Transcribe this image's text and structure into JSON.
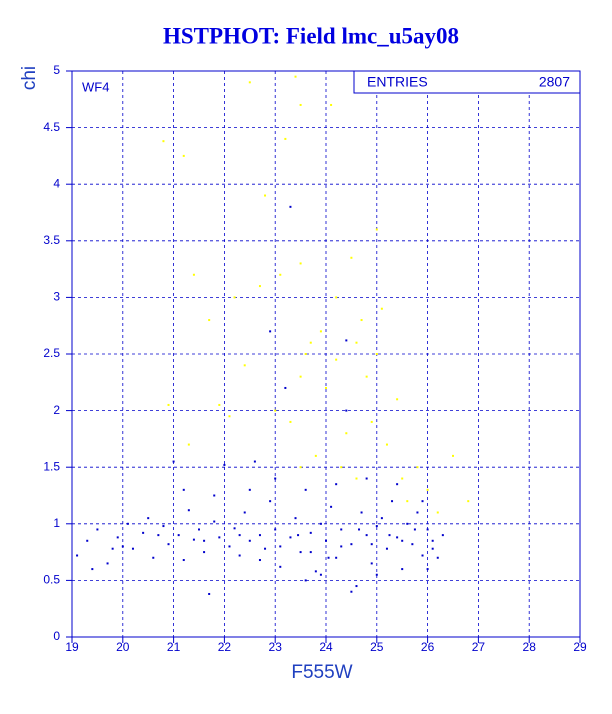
{
  "chart_data": {
    "type": "scatter",
    "title": "HSTPHOT: Field lmc_u5ay08",
    "x_label": "F555W",
    "y_label": "chi",
    "annotation": "WF4",
    "stats": {
      "label": "ENTRIES",
      "value": 2807
    },
    "xlim": [
      19,
      29
    ],
    "ylim": [
      0,
      5
    ],
    "xticks": [
      19,
      20,
      21,
      22,
      23,
      24,
      25,
      26,
      27,
      28,
      29
    ],
    "yticks": [
      0,
      0.5,
      1,
      1.5,
      2,
      2.5,
      3,
      3.5,
      4,
      4.5,
      5
    ],
    "grid": true,
    "series": [
      {
        "color": "#ffff00",
        "x": [
          20.8,
          21.2,
          21.4,
          22.5,
          22.8,
          23.2,
          23.4,
          23.5,
          23.5,
          24.1,
          24.2,
          24.5,
          24.6,
          25.0,
          25.1,
          24.8,
          23.7,
          23.5,
          24.0,
          23.3,
          24.4,
          25.2,
          25.8,
          26.5,
          26.8,
          21.9,
          21.3,
          20.9,
          22.1,
          23.8,
          24.3,
          24.9,
          25.5,
          26.0,
          23.1,
          22.7,
          24.7,
          23.9,
          23.6,
          25.4,
          21.7,
          22.4,
          24.6,
          25.6,
          26.2,
          23.5,
          24.2,
          25.0,
          23.0,
          22.2
        ],
        "values": [
          4.38,
          4.25,
          3.2,
          4.9,
          3.9,
          4.4,
          4.95,
          4.7,
          3.3,
          4.7,
          3.0,
          3.35,
          2.6,
          3.6,
          2.9,
          2.3,
          2.6,
          2.3,
          2.2,
          1.9,
          1.8,
          1.7,
          1.5,
          1.6,
          1.2,
          2.05,
          1.7,
          2.05,
          1.95,
          1.6,
          1.5,
          1.9,
          1.4,
          1.3,
          3.2,
          3.1,
          2.8,
          2.7,
          2.5,
          2.1,
          2.8,
          2.4,
          1.4,
          1.2,
          1.1,
          1.5,
          2.45,
          2.5,
          2.0,
          3.0
        ]
      },
      {
        "color": "#0000cc",
        "x": [
          19.1,
          19.3,
          19.5,
          19.7,
          19.9,
          20.1,
          20.2,
          20.4,
          20.6,
          20.8,
          20.9,
          21.0,
          21.1,
          21.2,
          21.3,
          21.4,
          21.5,
          21.6,
          21.7,
          21.8,
          21.9,
          22.0,
          22.1,
          22.2,
          22.3,
          22.4,
          22.5,
          22.6,
          22.7,
          22.8,
          22.9,
          23.0,
          23.1,
          23.2,
          23.3,
          23.4,
          23.5,
          23.6,
          23.7,
          23.8,
          23.9,
          24.0,
          24.1,
          24.2,
          24.3,
          24.4,
          24.5,
          24.6,
          24.7,
          24.8,
          24.9,
          25.0,
          25.1,
          25.2,
          25.3,
          25.4,
          25.5,
          25.6,
          25.7,
          25.8,
          25.9,
          26.0,
          26.1,
          26.2,
          26.3,
          23.3,
          22.9,
          24.4,
          19.4,
          20.0,
          20.5,
          21.2,
          21.8,
          22.5,
          23.0,
          23.6,
          24.2,
          24.8,
          25.4,
          25.9,
          23.1,
          23.7,
          24.3,
          24.9,
          25.5,
          26.1,
          22.3,
          21.6,
          20.7,
          19.8,
          23.45,
          24.05,
          24.65,
          25.25,
          25.75,
          22.7,
          24.5,
          23.9,
          25.0,
          26.0
        ],
        "values": [
          0.72,
          0.85,
          0.95,
          0.65,
          0.88,
          1.0,
          0.78,
          0.92,
          0.7,
          0.98,
          0.82,
          1.55,
          0.9,
          0.68,
          1.12,
          0.86,
          0.95,
          0.75,
          0.38,
          1.02,
          0.88,
          1.52,
          0.8,
          0.96,
          0.72,
          1.1,
          0.85,
          1.55,
          0.9,
          0.78,
          1.2,
          0.95,
          0.62,
          2.2,
          0.88,
          1.05,
          0.75,
          1.3,
          0.92,
          0.58,
          1.0,
          0.85,
          1.15,
          0.7,
          0.95,
          2.0,
          0.82,
          0.45,
          1.1,
          0.9,
          0.65,
          0.98,
          1.05,
          0.78,
          1.2,
          0.88,
          0.6,
          1.0,
          0.82,
          1.1,
          0.72,
          0.95,
          0.85,
          0.7,
          0.9,
          3.8,
          2.7,
          2.62,
          0.6,
          0.8,
          1.05,
          1.3,
          1.25,
          1.3,
          1.4,
          0.5,
          1.35,
          1.4,
          1.35,
          1.2,
          0.8,
          0.75,
          0.8,
          0.82,
          0.85,
          0.78,
          0.9,
          0.85,
          0.9,
          0.78,
          0.9,
          0.7,
          0.95,
          0.9,
          0.95,
          0.68,
          0.4,
          0.55,
          0.55,
          0.6
        ]
      }
    ]
  }
}
